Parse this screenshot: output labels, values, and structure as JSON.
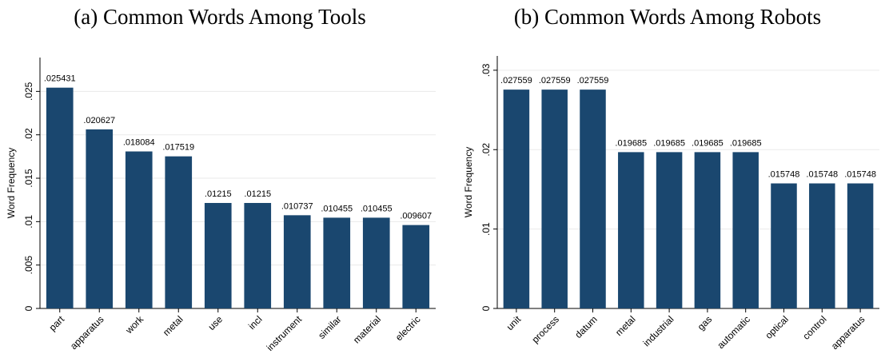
{
  "chart_data": [
    {
      "type": "bar",
      "title": "(a) Common Words Among Tools",
      "ylabel": "Word Frequency",
      "categories": [
        "part",
        "apparatus",
        "work",
        "metal",
        "use",
        "incl",
        "instrument",
        "similar",
        "material",
        "electric"
      ],
      "values": [
        0.025431,
        0.020627,
        0.018084,
        0.017519,
        0.01215,
        0.01215,
        0.010737,
        0.010455,
        0.010455,
        0.009607
      ],
      "value_labels": [
        ".025431",
        ".020627",
        ".018084",
        ".017519",
        ".01215",
        ".01215",
        ".010737",
        ".010455",
        ".010455",
        ".009607"
      ],
      "color": "#1a476f",
      "ylim": [
        0,
        0.0289
      ],
      "yticks": [
        0,
        {
          "value": 0.005,
          "label": ".005"
        },
        {
          "value": 0.01,
          "label": ".01"
        },
        {
          "value": 0.015,
          "label": ".015"
        },
        {
          "value": 0.02,
          "label": ".02"
        },
        {
          "value": 0.025,
          "label": ".025"
        }
      ],
      "grid": true
    },
    {
      "type": "bar",
      "title": "(b) Common Words Among Robots",
      "ylabel": "Word Frequency",
      "categories": [
        "unit",
        "process",
        "datum",
        "metal",
        "industrial",
        "gas",
        "automatic",
        "optical",
        "control",
        "apparatus"
      ],
      "values": [
        0.027559,
        0.027559,
        0.027559,
        0.019685,
        0.019685,
        0.019685,
        0.019685,
        0.015748,
        0.015748,
        0.015748
      ],
      "value_labels": [
        ".027559",
        ".027559",
        ".027559",
        ".019685",
        ".019685",
        ".019685",
        ".019685",
        ".015748",
        ".015748",
        ".015748"
      ],
      "color": "#1a476f",
      "ylim": [
        0,
        0.0318
      ],
      "yticks": [
        0,
        {
          "value": 0.01,
          "label": ".01"
        },
        {
          "value": 0.02,
          "label": ".02"
        },
        {
          "value": 0.03,
          "label": ".03"
        }
      ],
      "grid": true
    }
  ]
}
